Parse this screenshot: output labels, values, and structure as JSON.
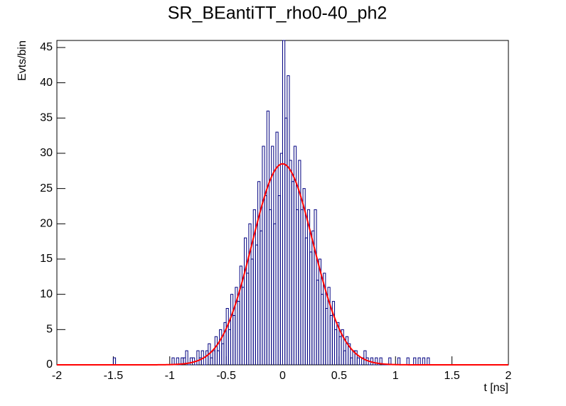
{
  "chart_data": {
    "type": "histogram",
    "title": "SR_BEantiTT_rho0-40_ph2",
    "x_label": "t [ns]",
    "y_label": "Evts/bin",
    "color": "#000080",
    "bins": [
      -2,
      -1.98,
      -1.96,
      -1.94,
      -1.92,
      -1.9,
      -1.88,
      -1.86,
      -1.84,
      -1.82,
      -1.8,
      -1.78,
      -1.76,
      -1.74,
      -1.72,
      -1.7,
      -1.68,
      -1.66,
      -1.64,
      -1.62,
      -1.6,
      -1.58,
      -1.56,
      -1.54,
      -1.52,
      -1.5,
      -1.48,
      -1.46,
      -1.44,
      -1.42,
      -1.4,
      -1.38,
      -1.36,
      -1.34,
      -1.32,
      -1.3,
      -1.28,
      -1.26,
      -1.24,
      -1.22,
      -1.2,
      -1.18,
      -1.16,
      -1.14,
      -1.12,
      -1.1,
      -1.08,
      -1.06,
      -1.04,
      -1.02,
      -1,
      -0.98,
      -0.96,
      -0.94,
      -0.92,
      -0.9,
      -0.88,
      -0.86,
      -0.84,
      -0.82,
      -0.8,
      -0.78,
      -0.76,
      -0.74,
      -0.72,
      -0.7,
      -0.68,
      -0.66,
      -0.64,
      -0.62,
      -0.6,
      -0.58,
      -0.56,
      -0.54,
      -0.52,
      -0.5,
      -0.48,
      -0.46,
      -0.44,
      -0.42,
      -0.4,
      -0.38,
      -0.36,
      -0.34,
      -0.32,
      -0.3,
      -0.28,
      -0.26,
      -0.24,
      -0.22,
      -0.2,
      -0.18,
      -0.16,
      -0.14,
      -0.12,
      -0.1,
      -0.08,
      -0.06,
      -0.04,
      -0.02,
      0,
      0.02,
      0.04,
      0.06,
      0.08,
      0.1,
      0.12,
      0.14,
      0.16,
      0.18,
      0.2,
      0.22,
      0.24,
      0.26,
      0.28,
      0.3,
      0.32,
      0.34,
      0.36,
      0.38,
      0.4,
      0.42,
      0.44,
      0.46,
      0.48,
      0.5,
      0.52,
      0.54,
      0.56,
      0.58,
      0.6,
      0.62,
      0.64,
      0.66,
      0.68,
      0.7,
      0.72,
      0.74,
      0.76,
      0.78,
      0.8,
      0.82,
      0.84,
      0.86,
      0.88,
      0.9,
      0.92,
      0.94,
      0.96,
      0.98,
      1,
      1.02,
      1.04,
      1.06,
      1.08,
      1.1,
      1.12,
      1.14,
      1.16,
      1.18,
      1.2,
      1.22,
      1.24,
      1.26,
      1.28,
      1.3,
      1.32,
      1.34,
      1.36,
      1.38,
      1.4,
      1.42,
      1.44,
      1.46,
      1.48,
      1.5,
      1.52,
      1.54,
      1.56,
      1.58,
      1.6,
      1.62,
      1.64,
      1.66,
      1.68,
      1.7,
      1.72,
      1.74,
      1.76,
      1.78,
      1.8,
      1.82,
      1.84,
      1.86,
      1.88,
      1.9,
      1.92,
      1.94,
      1.96,
      1.98,
      2
    ],
    "values": [
      0,
      0,
      0,
      0,
      0,
      0,
      0,
      0,
      0,
      0,
      0,
      0,
      0,
      0,
      0,
      0,
      0,
      0,
      0,
      0,
      0,
      0,
      0,
      0,
      0,
      1,
      0,
      0,
      0,
      0,
      0,
      0,
      0,
      0,
      0,
      0,
      0,
      0,
      0,
      0,
      0,
      0,
      0,
      0,
      0,
      0,
      0,
      0,
      0,
      0,
      0,
      1,
      0,
      1,
      0,
      1,
      1,
      2,
      0,
      1,
      1,
      0,
      2,
      1,
      2,
      0,
      2,
      3,
      1,
      2,
      4,
      2,
      5,
      3,
      6,
      8,
      5,
      10,
      7,
      11,
      9,
      14,
      11,
      18,
      13,
      20,
      15,
      22,
      17,
      26,
      19,
      31,
      24,
      36,
      22,
      31,
      20,
      33,
      24,
      30,
      46,
      35,
      41,
      29,
      26,
      31,
      22,
      29,
      22,
      25,
      18,
      22,
      16,
      19,
      22,
      12,
      15,
      10,
      13,
      8,
      11,
      7,
      9,
      5,
      6,
      4,
      5,
      2,
      4,
      3,
      1,
      2,
      2,
      1,
      0,
      1,
      2,
      1,
      0,
      1,
      0,
      1,
      0,
      1,
      0,
      0,
      0,
      1,
      0,
      0,
      0,
      1,
      0,
      0,
      0,
      1,
      0,
      0,
      1,
      0,
      1,
      0,
      1,
      0,
      1,
      0,
      0,
      0,
      0,
      0,
      0,
      0,
      0,
      0,
      0,
      0,
      0,
      0,
      0,
      0,
      0,
      0,
      0,
      0,
      0,
      0,
      0,
      0,
      0,
      0,
      0,
      0,
      0,
      0,
      0,
      0,
      0,
      0,
      0,
      0
    ],
    "fit": {
      "constant": 28.5,
      "mean": 0,
      "sigma": 0.27,
      "color": "#ff0000"
    },
    "xlim": [
      -2,
      2
    ],
    "ylim": [
      0,
      46
    ],
    "xticks": [
      -2,
      -1.5,
      -1,
      -0.5,
      0,
      0.5,
      1,
      1.5,
      2
    ],
    "yticks": [
      0,
      5,
      10,
      15,
      20,
      25,
      30,
      35,
      40,
      45
    ]
  }
}
